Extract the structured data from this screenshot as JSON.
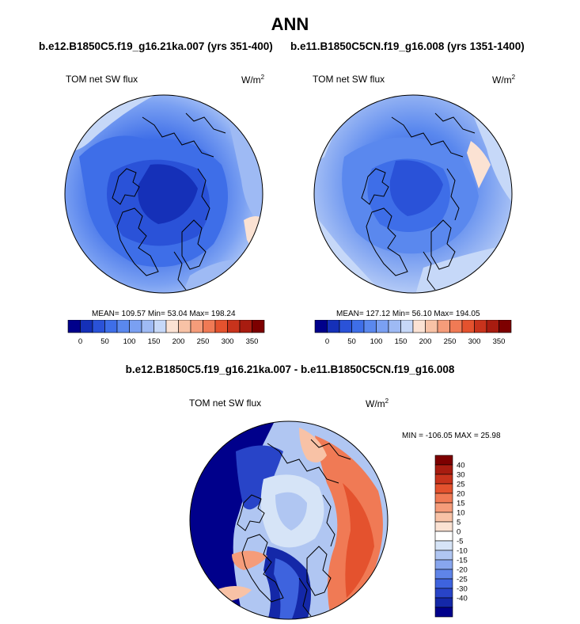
{
  "title": "ANN",
  "left_case": "b.e12.B1850C5.f19_g16.21ka.007 (yrs 351-400)",
  "right_case": "b.e11.B1850C5CN.f19_g16.008 (yrs 1351-1400)",
  "diff_title": "b.e12.B1850C5.f19_g16.21ka.007 - b.e11.B1850C5CN.f19_g16.008",
  "variable": "TOM net SW flux",
  "units_base": "W/m",
  "units_exp": "2",
  "panels": [
    {
      "stats": "MEAN= 109.57  Min=  53.04  Max= 198.24"
    },
    {
      "stats": "MEAN= 127.12  Min=  56.10  Max= 194.05"
    }
  ],
  "diff_stats": "MIN = -106.05 MAX =  25.98",
  "abs_colorbar": {
    "colors": [
      "#00008b",
      "#1530b8",
      "#2a52d8",
      "#3e6ee8",
      "#5a88ee",
      "#7aa0f2",
      "#9ebaf4",
      "#c6d8f8",
      "#fbe2d3",
      "#f8c2a6",
      "#f59c7a",
      "#f07a55",
      "#e4522e",
      "#c8331c",
      "#a81c10",
      "#7d0000"
    ],
    "ticks": [
      "0",
      "50",
      "100",
      "150",
      "200",
      "250",
      "300",
      "350"
    ]
  },
  "diff_colorbar": {
    "colors": [
      "#7d0000",
      "#a81c10",
      "#c8331c",
      "#e4522e",
      "#f07a55",
      "#f59c7a",
      "#f8c2a6",
      "#fbe2d3",
      "#ffffff",
      "#d6e4f7",
      "#b0c6f2",
      "#88a6ee",
      "#5f84e8",
      "#3e63de",
      "#2844c8",
      "#1428a8",
      "#00008b"
    ],
    "ticks": [
      "40",
      "30",
      "25",
      "20",
      "15",
      "10",
      "5",
      "0",
      "-5",
      "-10",
      "-15",
      "-20",
      "-25",
      "-30",
      "-40"
    ]
  }
}
